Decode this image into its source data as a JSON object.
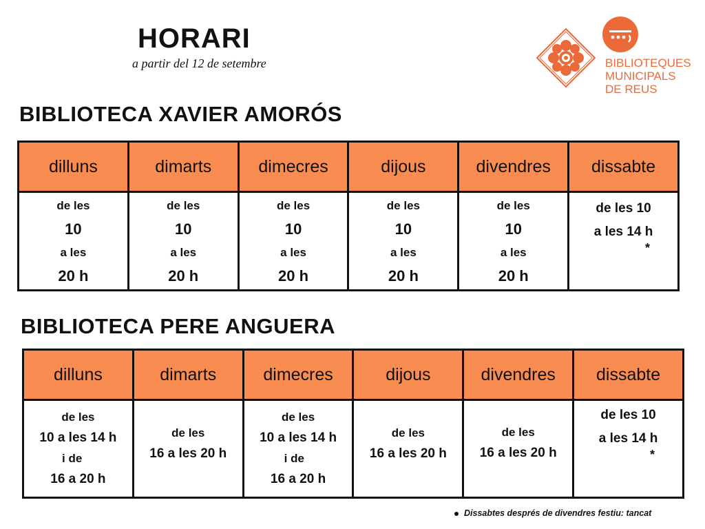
{
  "header": {
    "title": "HORARI",
    "subtitle": "a partir del 12 de setembre"
  },
  "logo": {
    "line1": "BIBLIOTEQUES",
    "line2": "MUNICIPALS",
    "line3": "DE REUS",
    "brand_color": "#ec6a3a"
  },
  "colors": {
    "header_fill": "#f98c51",
    "text": "#111111"
  },
  "days": [
    "dilluns",
    "dimarts",
    "dimecres",
    "dijous",
    "divendres",
    "dissabte"
  ],
  "library1": {
    "name": "BIBLIOTECA XAVIER AMORÓS",
    "weekday": {
      "from_label": "de les",
      "from_time": "10",
      "to_label": "a  les",
      "to_time": "20 h"
    },
    "saturday": {
      "line1": "de   les 10",
      "line2": "a les 14 h",
      "mark": "*"
    }
  },
  "library2": {
    "name": "BIBLIOTECA PERE ANGUERA",
    "full": {
      "line1": "de les",
      "line2": "10 a les 14 h",
      "line3": "i de",
      "line4": "16 a 20 h"
    },
    "afternoon": {
      "line1": "de les",
      "line2": "16 a les 20 h"
    },
    "saturday": {
      "line1": "de   les 10",
      "line2": "a les 14 h",
      "mark": "*"
    }
  },
  "footnote": "Dissabtes després de divendres festiu: tancat"
}
